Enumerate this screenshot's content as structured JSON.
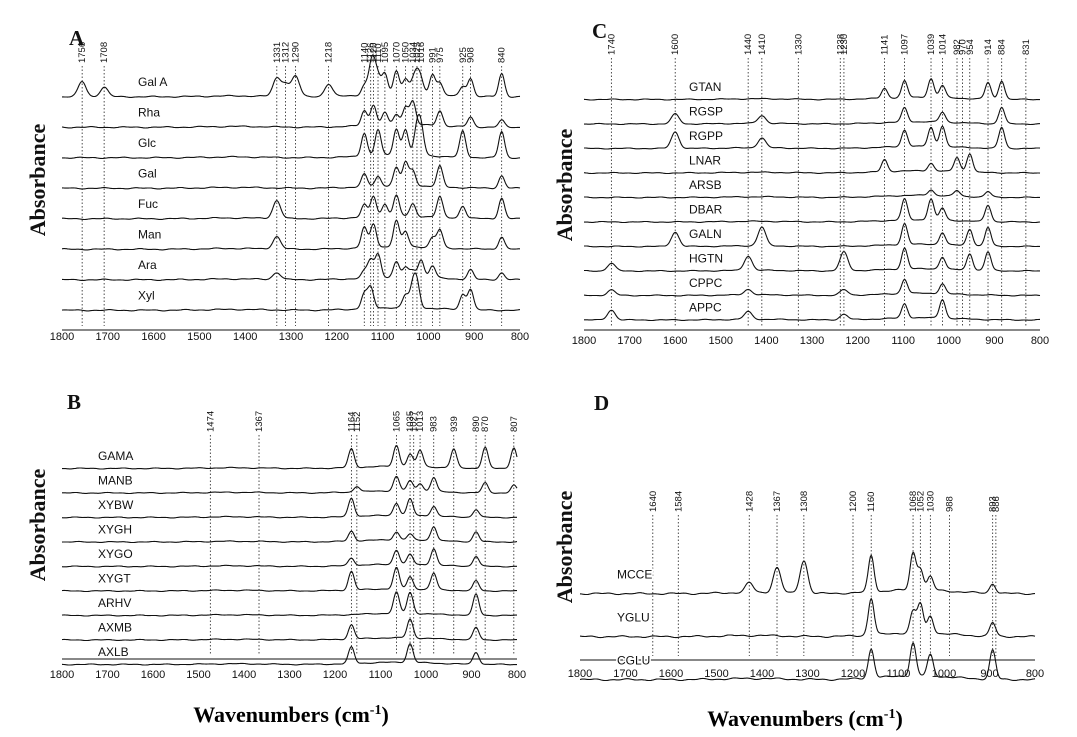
{
  "chart_data": [
    {
      "panel": "A",
      "type": "line",
      "xlabel": "Wavenumbers (cm-1)",
      "ylabel": "Absorbance",
      "xlim": [
        1800,
        800
      ],
      "x_ticks": [
        1800,
        1700,
        1600,
        1500,
        1400,
        1300,
        1200,
        1100,
        1000,
        900,
        800
      ],
      "series": [
        {
          "name": "Gal A",
          "peaks": [
            1756,
            1708,
            1331,
            1312,
            1290,
            1218,
            1140,
            1126,
            1120,
            1110,
            1095,
            1070,
            1050,
            1034,
            1025,
            1016,
            991,
            975,
            925,
            908,
            840
          ]
        },
        {
          "name": "Rha",
          "peaks": [
            1140,
            1120,
            1095,
            1070,
            1050,
            1034,
            975,
            908,
            840
          ]
        },
        {
          "name": "Glc",
          "peaks": [
            1140,
            1110,
            1070,
            1050,
            1025,
            1016,
            925,
            840
          ]
        },
        {
          "name": "Gal",
          "peaks": [
            1140,
            1110,
            1070,
            1050,
            1034,
            975,
            840
          ]
        },
        {
          "name": "Fuc",
          "peaks": [
            1331,
            1140,
            1120,
            1095,
            1070,
            1034,
            975,
            925,
            840
          ]
        },
        {
          "name": "Man",
          "peaks": [
            1331,
            1140,
            1120,
            1070,
            1050,
            991,
            975,
            840
          ]
        },
        {
          "name": "Ara",
          "peaks": [
            1331,
            1140,
            1126,
            1110,
            1070,
            1050,
            1034,
            1016,
            991,
            908,
            840
          ]
        },
        {
          "name": "Xyl",
          "peaks": [
            1140,
            1126,
            1050,
            1034,
            1025,
            925,
            908
          ]
        }
      ],
      "peak_markers": [
        1756,
        1708,
        1331,
        1312,
        1290,
        1218,
        1140,
        1126,
        1120,
        1110,
        1095,
        1070,
        1050,
        1034,
        1025,
        1016,
        991,
        975,
        925,
        908,
        840
      ]
    },
    {
      "panel": "B",
      "type": "line",
      "xlabel": "Wavenumbers (cm-1)",
      "ylabel": "Absorbance",
      "xlim": [
        1800,
        800
      ],
      "x_ticks": [
        1800,
        1700,
        1600,
        1500,
        1400,
        1300,
        1200,
        1100,
        1000,
        900,
        800
      ],
      "series": [
        {
          "name": "GAMA",
          "peaks": [
            1164,
            1065,
            1035,
            1013,
            939,
            870,
            807
          ]
        },
        {
          "name": "MANB",
          "peaks": [
            1152,
            1065,
            1035,
            1013,
            983,
            870,
            807
          ]
        },
        {
          "name": "XYBW",
          "peaks": [
            1164,
            1065,
            1035,
            983,
            890
          ]
        },
        {
          "name": "XYGH",
          "peaks": [
            1164,
            1065,
            1035,
            983,
            890
          ]
        },
        {
          "name": "XYGO",
          "peaks": [
            1164,
            1065,
            1035,
            983,
            890
          ]
        },
        {
          "name": "XYGT",
          "peaks": [
            1164,
            1065,
            1035,
            983,
            890
          ]
        },
        {
          "name": "ARHV",
          "peaks": [
            1065,
            1035,
            890
          ]
        },
        {
          "name": "AXMB",
          "peaks": [
            1164,
            1035,
            890
          ]
        },
        {
          "name": "AXLB",
          "peaks": [
            1164,
            1035,
            890
          ]
        }
      ],
      "peak_markers": [
        1474,
        1367,
        1164,
        1152,
        1065,
        1035,
        1027,
        1013,
        983,
        939,
        890,
        870,
        807
      ]
    },
    {
      "panel": "C",
      "type": "line",
      "xlabel": "Wavenumbers (cm-1)",
      "ylabel": "Absorbance",
      "xlim": [
        1800,
        800
      ],
      "x_ticks": [
        1800,
        1700,
        1600,
        1500,
        1400,
        1300,
        1200,
        1100,
        1000,
        900,
        800
      ],
      "series": [
        {
          "name": "GTAN",
          "peaks": [
            1141,
            1097,
            1039,
            1014,
            914,
            884
          ]
        },
        {
          "name": "RGSP",
          "peaks": [
            1600,
            1410,
            1097,
            1014,
            884
          ]
        },
        {
          "name": "RGPP",
          "peaks": [
            1600,
            1410,
            1097,
            1039,
            1014,
            884
          ]
        },
        {
          "name": "LNAR",
          "peaks": [
            1141,
            1039,
            982,
            954
          ]
        },
        {
          "name": "ARSB",
          "peaks": [
            1039,
            982,
            914
          ]
        },
        {
          "name": "DBAR",
          "peaks": [
            1097,
            1039,
            1014,
            914
          ]
        },
        {
          "name": "GALN",
          "peaks": [
            1600,
            1410,
            1097,
            1014,
            954,
            914
          ]
        },
        {
          "name": "HGTN",
          "peaks": [
            1740,
            1440,
            1230,
            1097,
            1014,
            954,
            914
          ]
        },
        {
          "name": "CPPC",
          "peaks": [
            1740,
            1440,
            1230,
            1097,
            1014
          ]
        },
        {
          "name": "APPC",
          "peaks": [
            1740,
            1440,
            1230,
            1097,
            1014
          ]
        }
      ],
      "peak_markers": [
        1740,
        1600,
        1440,
        1410,
        1330,
        1238,
        1230,
        1141,
        1097,
        1039,
        1014,
        982,
        970,
        954,
        914,
        884,
        831
      ]
    },
    {
      "panel": "D",
      "type": "line",
      "xlabel": "Wavenumbers (cm-1)",
      "ylabel": "Absorbance",
      "xlim": [
        1800,
        800
      ],
      "x_ticks": [
        1800,
        1700,
        1600,
        1500,
        1400,
        1300,
        1200,
        1100,
        1000,
        900,
        800
      ],
      "series": [
        {
          "name": "MCCE",
          "peaks": [
            1428,
            1367,
            1308,
            1160,
            1068,
            1052,
            1030,
            893
          ]
        },
        {
          "name": "YGLU",
          "peaks": [
            1160,
            1068,
            1052,
            1030,
            893
          ]
        },
        {
          "name": "CGLU",
          "peaks": [
            1160,
            1068,
            1030,
            893
          ]
        }
      ],
      "peak_markers": [
        1640,
        1584,
        1428,
        1367,
        1308,
        1200,
        1160,
        1068,
        1052,
        1030,
        988,
        893,
        886
      ]
    }
  ],
  "labels": {
    "panel_a": "A",
    "panel_b": "B",
    "panel_c": "C",
    "panel_d": "D",
    "x_axis_title_main": "Wavenumbers (cm",
    "x_axis_title_exp": "-1",
    "x_axis_title_close": ")",
    "y_axis_title": "Absorbance"
  },
  "colors": {
    "line": "#111111",
    "marker": "#222222",
    "background": "#ffffff"
  }
}
